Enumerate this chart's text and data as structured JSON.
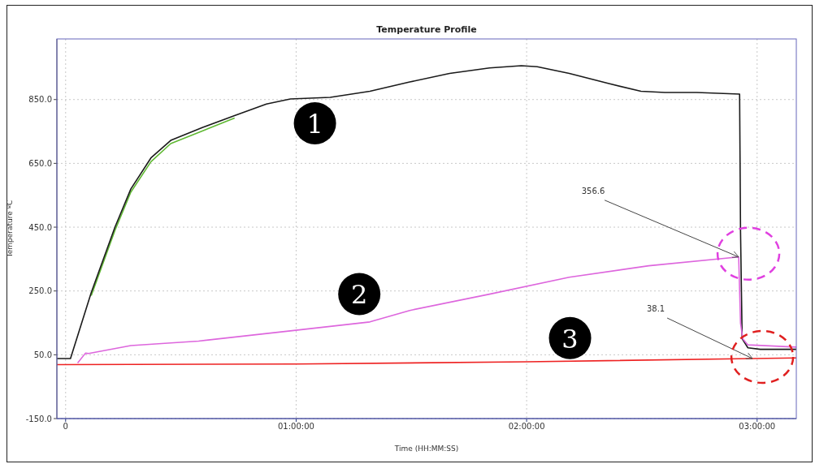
{
  "chart_data": {
    "type": "line",
    "title": "Temperature Profile",
    "xlabel": "Time (HH:MM:SS)",
    "ylabel": "Temperature ºC",
    "xlim": [
      -0.038,
      3.17
    ],
    "ylim": [
      -150,
      1040
    ],
    "xticks": [
      {
        "value": 0,
        "label": "0"
      },
      {
        "value": 1,
        "label": "01:00:00"
      },
      {
        "value": 2,
        "label": "02:00:00"
      },
      {
        "value": 3,
        "label": "03:00:00"
      }
    ],
    "yticks": [
      {
        "value": -150,
        "label": "-150.0"
      },
      {
        "value": 50,
        "label": "50.0"
      },
      {
        "value": 250,
        "label": "250.0"
      },
      {
        "value": 450,
        "label": "450.0"
      },
      {
        "value": 650,
        "label": "650.0"
      },
      {
        "value": 850,
        "label": "850.0"
      }
    ],
    "grid": true,
    "legend": false,
    "series": [
      {
        "color": "#5fb832",
        "x": [
          0.111,
          0.214,
          0.283,
          0.37,
          0.456,
          0.595,
          0.733
        ],
        "values": [
          235,
          440,
          560,
          655,
          712,
          752,
          792
        ]
      },
      {
        "color": "#1a1a1a",
        "x": [
          -0.038,
          0.021,
          0.111,
          0.214,
          0.283,
          0.37,
          0.456,
          0.595,
          0.733,
          0.871,
          0.975,
          1.148,
          1.32,
          1.493,
          1.666,
          1.839,
          1.977,
          2.046,
          2.185,
          2.357,
          2.496,
          2.6,
          2.738,
          2.924,
          2.928,
          2.935,
          2.96,
          3.014,
          3.17
        ],
        "values": [
          38,
          38,
          245,
          450,
          570,
          667,
          722,
          763,
          800,
          836,
          852,
          857,
          876,
          905,
          932,
          949,
          956,
          953,
          932,
          900,
          876,
          872,
          872,
          867,
          437,
          100,
          72,
          67,
          67
        ]
      },
      {
        "color": "#dd66dd",
        "x": [
          0.052,
          0.086,
          0.1,
          0.283,
          0.577,
          0.975,
          1.32,
          1.493,
          1.839,
          2.185,
          2.53,
          2.92,
          2.928,
          2.938,
          2.96,
          3.17
        ],
        "values": [
          24,
          55,
          54,
          79,
          93,
          125,
          153,
          189,
          240,
          293,
          329,
          356.6,
          149,
          100,
          81,
          74
        ]
      },
      {
        "color": "#ee2222",
        "x": [
          -0.038,
          1.0,
          2.0,
          2.98,
          3.17
        ],
        "values": [
          19,
          21,
          28,
          38.1,
          40
        ]
      }
    ],
    "annotations": [
      {
        "text": "356.6",
        "x": 2.92,
        "y": 356.6
      },
      {
        "text": "38.1",
        "x": 2.98,
        "y": 38.1
      },
      "1",
      "2",
      "3"
    ]
  }
}
